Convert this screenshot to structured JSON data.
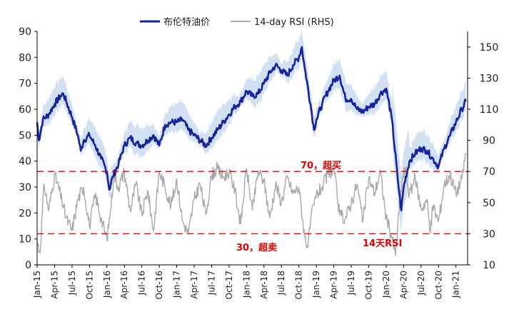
{
  "chart_data": {
    "type": "line",
    "title": "",
    "legend": [
      {
        "name": "布伦特油价",
        "color": "#17239a"
      },
      {
        "name": "14-day RSI (RHS)",
        "color": "#aaaaaa"
      }
    ],
    "x_ticks": [
      "Jan-15",
      "Apr-15",
      "Jul-15",
      "Oct-15",
      "Jan-16",
      "Apr-16",
      "Jul-16",
      "Oct-16",
      "Jan-17",
      "Apr-17",
      "Jul-17",
      "Oct-17",
      "Jan-18",
      "Apr-18",
      "Jul-18",
      "Oct-18",
      "Jan-19",
      "Apr-19",
      "Jul-19",
      "Oct-19",
      "Jan-20",
      "Apr-20",
      "Jul-20",
      "Oct-20",
      "Jan-21"
    ],
    "y_left": {
      "min": 0,
      "max": 90,
      "ticks": [
        0,
        10,
        20,
        30,
        40,
        50,
        60,
        70,
        80,
        90
      ]
    },
    "y_right": {
      "min": 10,
      "max": 160,
      "ticks": [
        10,
        30,
        50,
        70,
        90,
        110,
        130,
        150
      ]
    },
    "series": [
      {
        "name": "布伦特油价",
        "axis": "left",
        "anchors": [
          {
            "m": 0,
            "v": 55
          },
          {
            "m": 0.3,
            "v": 48
          },
          {
            "m": 1,
            "v": 56
          },
          {
            "m": 2,
            "v": 58
          },
          {
            "m": 3,
            "v": 62
          },
          {
            "m": 4,
            "v": 65
          },
          {
            "m": 4.5,
            "v": 66
          },
          {
            "m": 5,
            "v": 63
          },
          {
            "m": 6,
            "v": 57
          },
          {
            "m": 7,
            "v": 50
          },
          {
            "m": 7.5,
            "v": 44
          },
          {
            "m": 8,
            "v": 48
          },
          {
            "m": 9,
            "v": 50
          },
          {
            "m": 10,
            "v": 46
          },
          {
            "m": 11,
            "v": 41
          },
          {
            "m": 12,
            "v": 36
          },
          {
            "m": 12.4,
            "v": 29
          },
          {
            "m": 13,
            "v": 34
          },
          {
            "m": 14,
            "v": 39
          },
          {
            "m": 15,
            "v": 46
          },
          {
            "m": 16,
            "v": 49
          },
          {
            "m": 17,
            "v": 47
          },
          {
            "m": 18,
            "v": 46
          },
          {
            "m": 19,
            "v": 48
          },
          {
            "m": 20,
            "v": 50
          },
          {
            "m": 21,
            "v": 46
          },
          {
            "m": 22,
            "v": 54
          },
          {
            "m": 23,
            "v": 55
          },
          {
            "m": 24,
            "v": 55
          },
          {
            "m": 25,
            "v": 56
          },
          {
            "m": 26,
            "v": 52
          },
          {
            "m": 27,
            "v": 50
          },
          {
            "m": 28,
            "v": 48
          },
          {
            "m": 29,
            "v": 46
          },
          {
            "m": 30,
            "v": 49
          },
          {
            "m": 31,
            "v": 52
          },
          {
            "m": 32,
            "v": 55
          },
          {
            "m": 33,
            "v": 58
          },
          {
            "m": 34,
            "v": 61
          },
          {
            "m": 35,
            "v": 63
          },
          {
            "m": 36,
            "v": 67
          },
          {
            "m": 37,
            "v": 65
          },
          {
            "m": 38,
            "v": 66
          },
          {
            "m": 39,
            "v": 70
          },
          {
            "m": 40,
            "v": 74
          },
          {
            "m": 41,
            "v": 77
          },
          {
            "m": 42,
            "v": 75
          },
          {
            "m": 43,
            "v": 73
          },
          {
            "m": 44,
            "v": 77
          },
          {
            "m": 45,
            "v": 80
          },
          {
            "m": 45.5,
            "v": 84
          },
          {
            "m": 46,
            "v": 76
          },
          {
            "m": 47,
            "v": 62
          },
          {
            "m": 47.6,
            "v": 52
          },
          {
            "m": 48,
            "v": 56
          },
          {
            "m": 49,
            "v": 62
          },
          {
            "m": 50,
            "v": 67
          },
          {
            "m": 51,
            "v": 71
          },
          {
            "m": 52,
            "v": 73
          },
          {
            "m": 53,
            "v": 64
          },
          {
            "m": 54,
            "v": 64
          },
          {
            "m": 55,
            "v": 60
          },
          {
            "m": 56,
            "v": 59
          },
          {
            "m": 57,
            "v": 61
          },
          {
            "m": 58,
            "v": 62
          },
          {
            "m": 59,
            "v": 66
          },
          {
            "m": 60,
            "v": 68
          },
          {
            "m": 61,
            "v": 56
          },
          {
            "m": 62,
            "v": 33
          },
          {
            "m": 62.6,
            "v": 21
          },
          {
            "m": 63,
            "v": 30
          },
          {
            "m": 64,
            "v": 40
          },
          {
            "m": 65,
            "v": 43
          },
          {
            "m": 66,
            "v": 45
          },
          {
            "m": 67,
            "v": 44
          },
          {
            "m": 68,
            "v": 41
          },
          {
            "m": 69,
            "v": 38
          },
          {
            "m": 70,
            "v": 45
          },
          {
            "m": 71,
            "v": 50
          },
          {
            "m": 72,
            "v": 55
          },
          {
            "m": 73,
            "v": 60
          },
          {
            "m": 73.7,
            "v": 63
          }
        ]
      },
      {
        "name": "14-day RSI (RHS)",
        "axis": "right",
        "anchors": [
          {
            "m": 0,
            "v": 25
          },
          {
            "m": 0.5,
            "v": 18
          },
          {
            "m": 1.2,
            "v": 62
          },
          {
            "m": 2,
            "v": 45
          },
          {
            "m": 3,
            "v": 68
          },
          {
            "m": 4,
            "v": 55
          },
          {
            "m": 5,
            "v": 40
          },
          {
            "m": 6,
            "v": 32
          },
          {
            "m": 7,
            "v": 52
          },
          {
            "m": 8,
            "v": 60
          },
          {
            "m": 9,
            "v": 35
          },
          {
            "m": 10,
            "v": 55
          },
          {
            "m": 11,
            "v": 40
          },
          {
            "m": 12,
            "v": 26
          },
          {
            "m": 12.6,
            "v": 45
          },
          {
            "m": 13.2,
            "v": 68
          },
          {
            "m": 14,
            "v": 60
          },
          {
            "m": 15,
            "v": 70
          },
          {
            "m": 16,
            "v": 45
          },
          {
            "m": 17,
            "v": 62
          },
          {
            "m": 18,
            "v": 42
          },
          {
            "m": 19,
            "v": 58
          },
          {
            "m": 20,
            "v": 32
          },
          {
            "m": 21,
            "v": 70
          },
          {
            "m": 22,
            "v": 60
          },
          {
            "m": 23,
            "v": 48
          },
          {
            "m": 24,
            "v": 65
          },
          {
            "m": 25,
            "v": 38
          },
          {
            "m": 26,
            "v": 30
          },
          {
            "m": 27,
            "v": 52
          },
          {
            "m": 28,
            "v": 62
          },
          {
            "m": 29,
            "v": 42
          },
          {
            "m": 30,
            "v": 68
          },
          {
            "m": 31,
            "v": 72
          },
          {
            "m": 32,
            "v": 66
          },
          {
            "m": 33,
            "v": 70
          },
          {
            "m": 34,
            "v": 58
          },
          {
            "m": 35,
            "v": 36
          },
          {
            "m": 36,
            "v": 72
          },
          {
            "m": 37,
            "v": 45
          },
          {
            "m": 38,
            "v": 70
          },
          {
            "m": 39,
            "v": 64
          },
          {
            "m": 40,
            "v": 40
          },
          {
            "m": 41,
            "v": 62
          },
          {
            "m": 42,
            "v": 50
          },
          {
            "m": 43,
            "v": 66
          },
          {
            "m": 44,
            "v": 56
          },
          {
            "m": 45,
            "v": 60
          },
          {
            "m": 46,
            "v": 28
          },
          {
            "m": 46.6,
            "v": 22
          },
          {
            "m": 47,
            "v": 38
          },
          {
            "m": 48,
            "v": 55
          },
          {
            "m": 49,
            "v": 60
          },
          {
            "m": 50,
            "v": 68
          },
          {
            "m": 51,
            "v": 72
          },
          {
            "m": 52,
            "v": 42
          },
          {
            "m": 53,
            "v": 40
          },
          {
            "m": 54,
            "v": 50
          },
          {
            "m": 55,
            "v": 62
          },
          {
            "m": 56,
            "v": 38
          },
          {
            "m": 57,
            "v": 66
          },
          {
            "m": 58,
            "v": 56
          },
          {
            "m": 59,
            "v": 70
          },
          {
            "m": 60,
            "v": 40
          },
          {
            "m": 61,
            "v": 28
          },
          {
            "m": 61.6,
            "v": 16
          },
          {
            "m": 62,
            "v": 35
          },
          {
            "m": 62.7,
            "v": 64
          },
          {
            "m": 63.3,
            "v": 72
          },
          {
            "m": 64,
            "v": 55
          },
          {
            "m": 65,
            "v": 66
          },
          {
            "m": 66,
            "v": 46
          },
          {
            "m": 67,
            "v": 52
          },
          {
            "m": 67.6,
            "v": 30
          },
          {
            "m": 68,
            "v": 48
          },
          {
            "m": 69,
            "v": 38
          },
          {
            "m": 70,
            "v": 62
          },
          {
            "m": 71,
            "v": 68
          },
          {
            "m": 72,
            "v": 56
          },
          {
            "m": 73,
            "v": 65
          },
          {
            "m": 73.7,
            "v": 82
          }
        ]
      }
    ],
    "reference_lines": [
      {
        "value": 70,
        "axis": "right",
        "label": "70，超买"
      },
      {
        "value": 30,
        "axis": "right",
        "label": "30，超卖"
      }
    ],
    "annotations": [
      {
        "text": "14天RSI"
      }
    ],
    "band_description": "布伦特油价 upper/lower envelope (light blue)"
  }
}
